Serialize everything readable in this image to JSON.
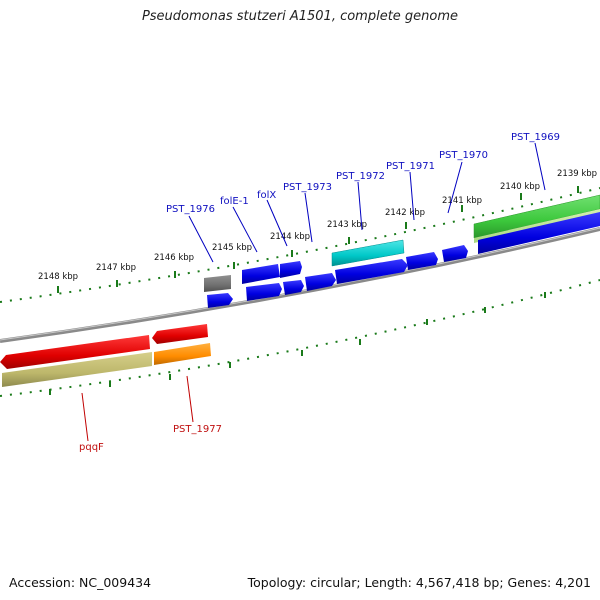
{
  "title": "Pseudomonas stutzeri A1501, complete genome",
  "accession": "Accession: NC_009434",
  "summary": "Topology: circular; Length: 4,567,418 bp; Genes: 4,201",
  "scale": {
    "labels": [
      {
        "name": "kbp-2148",
        "text": "2148 kbp"
      },
      {
        "name": "kbp-2147",
        "text": "2147 kbp"
      },
      {
        "name": "kbp-2146",
        "text": "2146 kbp"
      },
      {
        "name": "kbp-2145",
        "text": "2145 kbp"
      },
      {
        "name": "kbp-2144",
        "text": "2144 kbp"
      },
      {
        "name": "kbp-2143",
        "text": "2143 kbp"
      },
      {
        "name": "kbp-2142",
        "text": "2142 kbp"
      },
      {
        "name": "kbp-2141",
        "text": "2141 kbp"
      },
      {
        "name": "kbp-2140",
        "text": "2140 kbp"
      },
      {
        "name": "kbp-2139",
        "text": "2139 kbp"
      }
    ]
  },
  "genes": [
    {
      "name": "pst-1969",
      "label": "PST_1969",
      "strand": "forward",
      "color": "#3cc83c"
    },
    {
      "name": "pst-1970",
      "label": "PST_1970",
      "strand": "forward",
      "color": "#0000e0"
    },
    {
      "name": "pst-1971",
      "label": "PST_1971",
      "strand": "forward",
      "color": "#0000e0"
    },
    {
      "name": "pst-1972",
      "label": "PST_1972",
      "strand": "forward",
      "color": "#00c8c8"
    },
    {
      "name": "pst-1973",
      "label": "PST_1973",
      "strand": "forward",
      "color": "#0000e0"
    },
    {
      "name": "folx",
      "label": "folX",
      "strand": "forward",
      "color": "#0000e0"
    },
    {
      "name": "fole-1",
      "label": "folE-1",
      "strand": "forward",
      "color": "#0000e0"
    },
    {
      "name": "pst-1976",
      "label": "PST_1976",
      "strand": "forward",
      "color": "#707070"
    },
    {
      "name": "pst-1977",
      "label": "PST_1977",
      "strand": "reverse",
      "color": "#ff8c00"
    },
    {
      "name": "pqqf",
      "label": "pqqF",
      "strand": "reverse",
      "color": "#e00000"
    }
  ]
}
